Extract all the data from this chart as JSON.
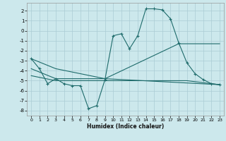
{
  "xlabel": "Humidex (Indice chaleur)",
  "bg_color": "#cce8ec",
  "grid_color": "#aaccd4",
  "line_color": "#1e6b6b",
  "xlim": [
    -0.5,
    23.5
  ],
  "ylim": [
    -8.5,
    2.8
  ],
  "xticks": [
    0,
    1,
    2,
    3,
    4,
    5,
    6,
    7,
    8,
    9,
    10,
    11,
    12,
    13,
    14,
    15,
    16,
    17,
    18,
    19,
    20,
    21,
    22,
    23
  ],
  "yticks": [
    -8,
    -7,
    -6,
    -5,
    -4,
    -3,
    -2,
    -1,
    0,
    1,
    2
  ],
  "line1_x": [
    0,
    1,
    2,
    3,
    4,
    5,
    6,
    7,
    8,
    9,
    10,
    11,
    12,
    13,
    14,
    15,
    16,
    17,
    18,
    19,
    20,
    21,
    22,
    23
  ],
  "line1_y": [
    -2.8,
    -3.8,
    -5.3,
    -4.8,
    -5.3,
    -5.5,
    -5.5,
    -7.8,
    -7.5,
    -4.9,
    -0.5,
    -0.3,
    -1.8,
    -0.5,
    2.2,
    2.2,
    2.1,
    1.2,
    -1.2,
    -3.2,
    -4.3,
    -4.9,
    -5.3,
    -5.4
  ],
  "line2_x": [
    0,
    3,
    9,
    18,
    23
  ],
  "line2_y": [
    -2.8,
    -3.8,
    -4.8,
    -1.3,
    -1.3
  ],
  "line3_x": [
    0,
    3,
    9,
    23
  ],
  "line3_y": [
    -3.8,
    -4.8,
    -4.8,
    -5.4
  ],
  "line4_x": [
    0,
    3,
    9,
    19,
    23
  ],
  "line4_y": [
    -4.5,
    -5.0,
    -5.0,
    -5.0,
    -5.4
  ]
}
